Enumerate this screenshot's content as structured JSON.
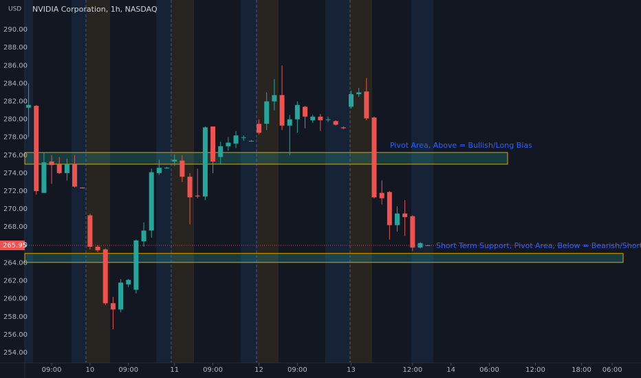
{
  "chart_data": {
    "type": "candlestick",
    "title": "NVIDIA Corporation, 1h, NASDAQ",
    "currency": "USD",
    "up_color": "#26a69a",
    "down_color": "#ef5350",
    "open": [
      281.3,
      281.5,
      271.8,
      275.3,
      275,
      274,
      275,
      272.4,
      269.3,
      265.8,
      265.5,
      259.5,
      258.8,
      261.6,
      261,
      266.4,
      267.6,
      274,
      274.6,
      275.3,
      275.4,
      273.6,
      271.5,
      271.4,
      279.2,
      275.8,
      277,
      277.3,
      278,
      277.6,
      279.5,
      279.5,
      282,
      282.7,
      279.3,
      280,
      281.4,
      279.9,
      280.3,
      280,
      279.8,
      279.1,
      281.4,
      282.8,
      283.1,
      280.2,
      271.8,
      271.9,
      268.2,
      269.5,
      269.2,
      265.7,
      265.95
    ],
    "high": [
      284,
      281.6,
      276.3,
      276,
      275.8,
      275.6,
      276,
      272.4,
      269.5,
      266,
      265.6,
      260.2,
      262.2,
      262.2,
      266.6,
      268.5,
      274.5,
      275.5,
      274.7,
      276.1,
      276,
      274,
      274.5,
      279.2,
      279.2,
      277.5,
      278,
      278.7,
      278.2,
      277.7,
      280,
      283,
      284.5,
      286,
      280.5,
      282,
      281.5,
      280.5,
      280.6,
      280.3,
      279.9,
      279.2,
      283.2,
      283.5,
      284.6,
      280.3,
      273.2,
      272,
      270.3,
      271,
      269.3,
      266.3,
      266
    ],
    "low": [
      278,
      271.6,
      271.8,
      272.8,
      273.9,
      273.2,
      272.4,
      272.3,
      265.5,
      265.2,
      259.3,
      256.6,
      258.5,
      261.3,
      260.6,
      265.8,
      266.8,
      273.8,
      274.5,
      274.8,
      273,
      268.3,
      271.2,
      271,
      274,
      275,
      276.5,
      276.8,
      277.6,
      277.5,
      278.3,
      278.8,
      281,
      278.8,
      276,
      278.5,
      279,
      279.6,
      278.7,
      279.7,
      279.3,
      278.9,
      281.2,
      282.5,
      279.9,
      271.2,
      270.5,
      266.6,
      267.5,
      267,
      265.3,
      265.6,
      265.9
    ],
    "close": [
      281.6,
      272,
      275.2,
      274.9,
      274,
      275,
      272.5,
      272.3,
      265.8,
      265.4,
      259.5,
      258.8,
      261.8,
      262.1,
      266.5,
      267.6,
      274.1,
      274.6,
      274.6,
      275.5,
      273.6,
      271.3,
      271.4,
      279.1,
      275.3,
      277,
      277.4,
      278.2,
      278,
      277.6,
      278.5,
      282,
      282.7,
      279.3,
      280,
      281.6,
      280.3,
      280.3,
      279.9,
      280,
      279.4,
      279,
      282.8,
      283,
      280.1,
      271.3,
      271.2,
      268.2,
      269.5,
      269.1,
      265.7,
      266.2,
      265.95
    ],
    "xlim": [
      -0.5,
      79.3
    ],
    "xticks": [
      {
        "value": 3,
        "label": "09:00"
      },
      {
        "value": 8,
        "label": "10"
      },
      {
        "value": 13,
        "label": "09:00"
      },
      {
        "value": 19,
        "label": "11"
      },
      {
        "value": 24,
        "label": "09:00"
      },
      {
        "value": 30,
        "label": "12"
      },
      {
        "value": 35,
        "label": "09:00"
      },
      {
        "value": 42,
        "label": "13"
      },
      {
        "value": 50,
        "label": "12:00"
      },
      {
        "value": 55,
        "label": "14"
      },
      {
        "value": 60,
        "label": "06:00"
      },
      {
        "value": 66,
        "label": "12:00"
      },
      {
        "value": 72,
        "label": "18:00"
      },
      {
        "value": 76,
        "label": "06:00"
      }
    ],
    "ylim": [
      252.85,
      293.3
    ],
    "yticks": [
      {
        "value": 254,
        "label": "254.00"
      },
      {
        "value": 256,
        "label": "256.00"
      },
      {
        "value": 258,
        "label": "258.00"
      },
      {
        "value": 260,
        "label": "260.00"
      },
      {
        "value": 262,
        "label": "262.00"
      },
      {
        "value": 264,
        "label": "264.00"
      },
      {
        "value": 266,
        "label": "266.00"
      },
      {
        "value": 268,
        "label": "268.00"
      },
      {
        "value": 270,
        "label": "270.00"
      },
      {
        "value": 272,
        "label": "272.00"
      },
      {
        "value": 274,
        "label": "274.00"
      },
      {
        "value": 276,
        "label": "276.00"
      },
      {
        "value": 278,
        "label": "278.00"
      },
      {
        "value": 280,
        "label": "280.00"
      },
      {
        "value": 282,
        "label": "282.00"
      },
      {
        "value": 284,
        "label": "284.00"
      },
      {
        "value": 286,
        "label": "286.00"
      },
      {
        "value": 288,
        "label": "288.00"
      },
      {
        "value": 290,
        "label": "290.00"
      }
    ],
    "last_price": {
      "value": 265.95,
      "label": "265.95"
    },
    "zones": [
      {
        "label": "Pivot Area, Above = Bullish/Long Bias",
        "low": 275,
        "high": 276.3
      },
      {
        "label": "Short Term Support, Pivot Area, Below = Bearish/Short Bias",
        "low": 264.05,
        "high": 265.05
      }
    ]
  }
}
